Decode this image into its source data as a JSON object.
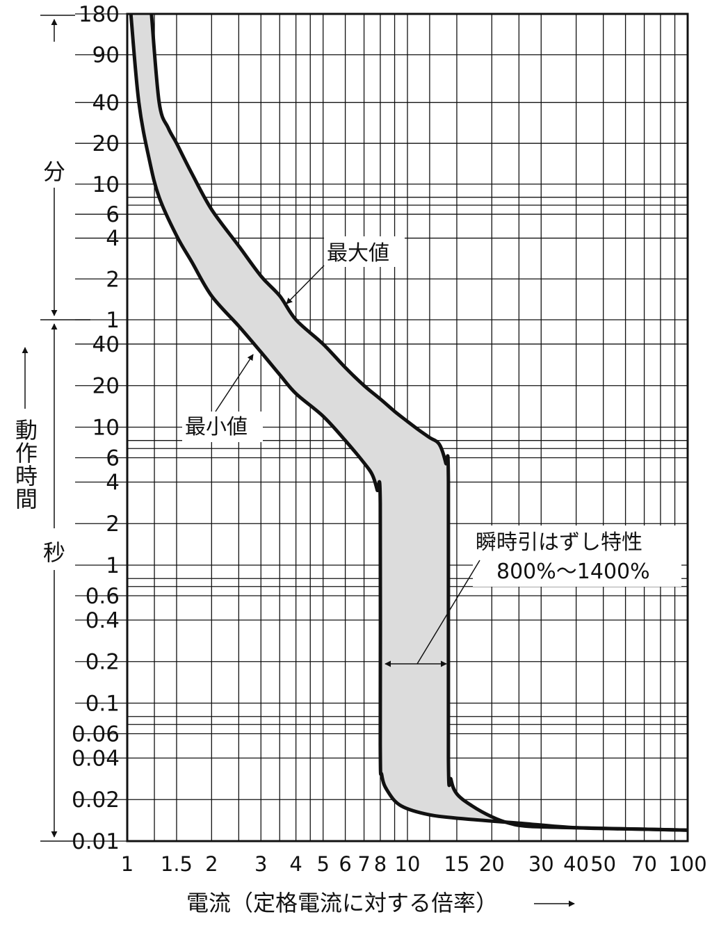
{
  "chart_data": {
    "type": "line",
    "title": "",
    "xlabel": "電流（定格電流に対する倍率）",
    "ylabel": "動作時間",
    "xscale": "log",
    "yscale": "log",
    "x_range": [
      1,
      100
    ],
    "y_range_seconds": [
      0.01,
      10800
    ],
    "grid": true,
    "x_ticks": [
      {
        "v": 1,
        "label": "1"
      },
      {
        "v": 1.5,
        "label": "1.5"
      },
      {
        "v": 2,
        "label": "2"
      },
      {
        "v": 3,
        "label": "3"
      },
      {
        "v": 4,
        "label": "4"
      },
      {
        "v": 5,
        "label": "5"
      },
      {
        "v": 6,
        "label": "6"
      },
      {
        "v": 7,
        "label": "7"
      },
      {
        "v": 8,
        "label": "8"
      },
      {
        "v": 10,
        "label": "10"
      },
      {
        "v": 15,
        "label": "15"
      },
      {
        "v": 20,
        "label": "20"
      },
      {
        "v": 30,
        "label": "30"
      },
      {
        "v": 40,
        "label": "40"
      },
      {
        "v": 50,
        "label": "50"
      },
      {
        "v": 70,
        "label": "70"
      },
      {
        "v": 100,
        "label": "100"
      }
    ],
    "x_minor_grid": [
      1.25,
      2.5,
      3.5,
      4.5,
      9,
      12,
      25,
      60,
      80,
      90
    ],
    "y_ticks_minutes": [
      {
        "v": 180,
        "label": "180"
      },
      {
        "v": 90,
        "label": "90"
      },
      {
        "v": 40,
        "label": "40"
      },
      {
        "v": 20,
        "label": "20"
      },
      {
        "v": 10,
        "label": "10"
      },
      {
        "v": 6,
        "label": "6"
      },
      {
        "v": 4,
        "label": "4"
      },
      {
        "v": 2,
        "label": "2"
      },
      {
        "v": 1,
        "label": "1"
      }
    ],
    "y_ticks_seconds": [
      {
        "v": 40,
        "label": "40"
      },
      {
        "v": 20,
        "label": "20"
      },
      {
        "v": 10,
        "label": "10"
      },
      {
        "v": 6,
        "label": "6"
      },
      {
        "v": 4,
        "label": "4"
      },
      {
        "v": 2,
        "label": "2"
      },
      {
        "v": 1,
        "label": "1"
      },
      {
        "v": 0.6,
        "label": "0.6"
      },
      {
        "v": 0.4,
        "label": "0.4"
      },
      {
        "v": 0.2,
        "label": "0.2"
      },
      {
        "v": 0.1,
        "label": "0.1"
      },
      {
        "v": 0.06,
        "label": "0.06"
      },
      {
        "v": 0.04,
        "label": "0.04"
      },
      {
        "v": 0.02,
        "label": "0.02"
      },
      {
        "v": 0.01,
        "label": "0.01"
      }
    ],
    "y_extra_grid_minutes": [
      8,
      7
    ],
    "y_extra_grid_seconds": [
      8,
      7,
      0.8,
      0.7,
      0.08,
      0.07
    ],
    "unit_labels": {
      "minutes": "分",
      "seconds": "秒"
    },
    "series": [
      {
        "name": "最大値",
        "points": [
          [
            1.22,
            10800
          ],
          [
            1.3,
            2400
          ],
          [
            1.4,
            1560
          ],
          [
            1.5,
            1200
          ],
          [
            1.7,
            720
          ],
          [
            2,
            390
          ],
          [
            2.5,
            210
          ],
          [
            3,
            126
          ],
          [
            3.5,
            90
          ],
          [
            4,
            60
          ],
          [
            5,
            40
          ],
          [
            6,
            27
          ],
          [
            7,
            20
          ],
          [
            8,
            16
          ],
          [
            9,
            13
          ],
          [
            10,
            11
          ],
          [
            11,
            9.5
          ],
          [
            12,
            8.4
          ],
          [
            13,
            7.5
          ],
          [
            13.7,
            5.5
          ],
          [
            14,
            4
          ],
          [
            14,
            0.04
          ],
          [
            14.3,
            0.028
          ],
          [
            15,
            0.022
          ],
          [
            17,
            0.018
          ],
          [
            20,
            0.015
          ],
          [
            23,
            0.0135
          ],
          [
            27,
            0.0128
          ],
          [
            40,
            0.0125
          ],
          [
            70,
            0.0122
          ],
          [
            100,
            0.012
          ]
        ]
      },
      {
        "name": "最小値",
        "points": [
          [
            1.03,
            10800
          ],
          [
            1.1,
            2400
          ],
          [
            1.2,
            900
          ],
          [
            1.3,
            480
          ],
          [
            1.5,
            250
          ],
          [
            1.7,
            160
          ],
          [
            2,
            90
          ],
          [
            2.5,
            54
          ],
          [
            3,
            35
          ],
          [
            3.5,
            24
          ],
          [
            4,
            17.5
          ],
          [
            5,
            12
          ],
          [
            6,
            8
          ],
          [
            7,
            5.5
          ],
          [
            7.5,
            4.5
          ],
          [
            7.8,
            3.5
          ],
          [
            8,
            2.8
          ],
          [
            8,
            0.05
          ],
          [
            8.1,
            0.03
          ],
          [
            8.5,
            0.023
          ],
          [
            9.5,
            0.018
          ],
          [
            12,
            0.0155
          ],
          [
            16,
            0.0145
          ],
          [
            25,
            0.0135
          ],
          [
            40,
            0.0125
          ],
          [
            70,
            0.0122
          ],
          [
            100,
            0.012
          ]
        ]
      }
    ],
    "annotations": {
      "max_label": "最大値",
      "min_label": "最小値",
      "instant_trip_label": "瞬時引はずし特性",
      "instant_trip_range": "800%～1400%"
    }
  }
}
